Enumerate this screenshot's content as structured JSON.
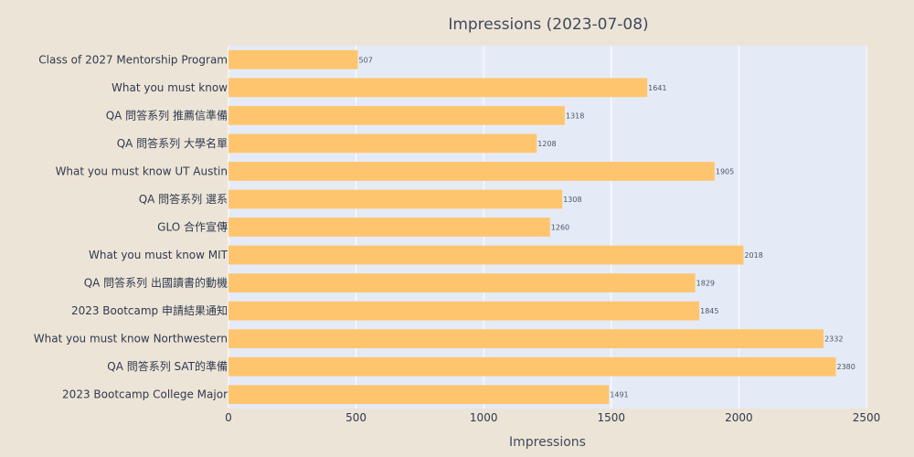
{
  "chart_data": {
    "type": "bar",
    "orientation": "horizontal",
    "title": "Impressions (2023-07-08)",
    "xlabel": "Impressions",
    "ylabel": "",
    "xlim": [
      0,
      2500
    ],
    "xticks": [
      0,
      500,
      1000,
      1500,
      2000,
      2500
    ],
    "grid": true,
    "legend": "none",
    "bar_color": "#ffc56e",
    "plot_background": "#e5ebf6",
    "page_background": "#ede4d8",
    "categories": [
      "Class of 2027 Mentorship Program",
      "What you must know",
      "QA 問答系列 推薦信準備",
      "QA 問答系列 大學名單",
      "What you must know UT Austin",
      "QA 問答系列 選系",
      "GLO 合作宣傳",
      "What you must know MIT",
      "QA 問答系列 出國讀書的動機",
      "2023 Bootcamp 申請結果通知",
      "What you must know Northwestern",
      "QA 問答系列 SAT的準備",
      "2023 Bootcamp College Major"
    ],
    "values": [
      507,
      1641,
      1318,
      1208,
      1905,
      1308,
      1260,
      2018,
      1829,
      1845,
      2332,
      2380,
      1491
    ]
  }
}
